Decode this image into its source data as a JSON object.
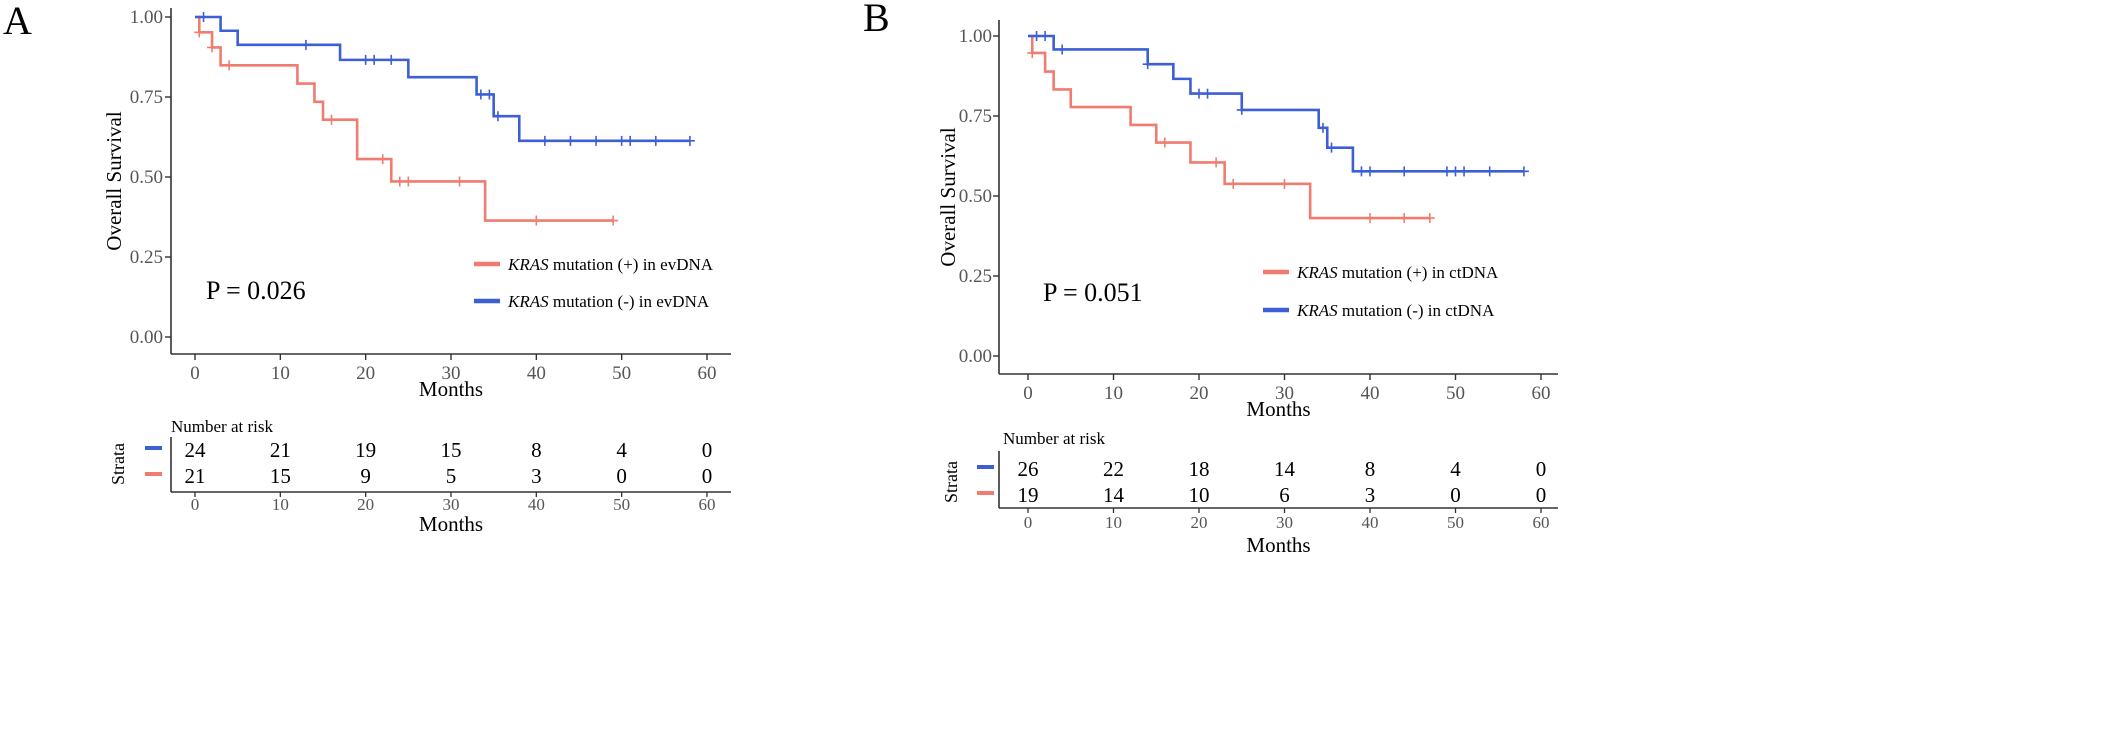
{
  "chart_data": [
    {
      "type": "line",
      "panel_label": "A",
      "xlabel": "Months",
      "ylabel": "Overall Survival",
      "xlim": [
        0,
        60
      ],
      "ylim": [
        0,
        1
      ],
      "x_ticks": [
        0,
        10,
        20,
        30,
        40,
        50,
        60
      ],
      "y_ticks": [
        "0.00",
        "0.25",
        "0.50",
        "0.75",
        "1.00"
      ],
      "grid": false,
      "legend_position": "bottom-right",
      "p_value": "P = 0.026",
      "series": [
        {
          "name_prefix": "KRAS",
          "name_suffix": " mutation (+) in evDNA",
          "color": "#f07c70",
          "steps": [
            [
              0,
              1.0
            ],
            [
              0.5,
              0.952
            ],
            [
              2,
              0.905
            ],
            [
              3,
              0.849
            ],
            [
              12,
              0.792
            ],
            [
              14,
              0.735
            ],
            [
              15,
              0.679
            ],
            [
              19,
              0.556
            ],
            [
              23,
              0.486
            ],
            [
              34,
              0.364
            ],
            [
              49,
              0.364
            ]
          ],
          "censor_times": [
            0.5,
            2,
            4,
            16,
            22,
            24,
            25,
            31,
            40,
            49
          ]
        },
        {
          "name_prefix": "KRAS",
          "name_suffix": " mutation (-) in evDNA",
          "color": "#3d5fd6",
          "steps": [
            [
              0,
              1.0
            ],
            [
              3,
              0.957
            ],
            [
              5,
              0.913
            ],
            [
              17,
              0.866
            ],
            [
              25,
              0.812
            ],
            [
              33,
              0.758
            ],
            [
              35,
              0.69
            ],
            [
              38,
              0.613
            ],
            [
              58,
              0.613
            ]
          ],
          "censor_times": [
            1,
            13,
            20,
            21,
            23,
            33.5,
            34.5,
            35.5,
            41,
            44,
            47,
            50,
            51,
            54,
            58
          ]
        }
      ],
      "risk_table": {
        "title": "Number at risk",
        "ylabel": "Strata",
        "xlabel": "Months",
        "times": [
          0,
          10,
          20,
          30,
          40,
          50,
          60
        ],
        "rows": [
          {
            "color": "#3d5fd6",
            "values": [
              "24",
              "21",
              "19",
              "15",
              "8",
              "4",
              "0"
            ]
          },
          {
            "color": "#f07c70",
            "values": [
              "21",
              "15",
              "9",
              "5",
              "3",
              "0",
              "0"
            ]
          }
        ]
      }
    },
    {
      "type": "line",
      "panel_label": "B",
      "xlabel": "Months",
      "ylabel": "Overall Survival",
      "xlim": [
        0,
        60
      ],
      "ylim": [
        0,
        1
      ],
      "x_ticks": [
        0,
        10,
        20,
        30,
        40,
        50,
        60
      ],
      "y_ticks": [
        "0.00",
        "0.25",
        "0.50",
        "0.75",
        "1.00"
      ],
      "grid": false,
      "legend_position": "bottom-right",
      "p_value": "P = 0.051",
      "series": [
        {
          "name_prefix": "KRAS",
          "name_suffix": " mutation (+) in ctDNA",
          "color": "#f07c70",
          "steps": [
            [
              0,
              1.0
            ],
            [
              0.5,
              0.947
            ],
            [
              2,
              0.889
            ],
            [
              3,
              0.833
            ],
            [
              5,
              0.778
            ],
            [
              12,
              0.722
            ],
            [
              15,
              0.667
            ],
            [
              19,
              0.605
            ],
            [
              23,
              0.538
            ],
            [
              33,
              0.431
            ],
            [
              47,
              0.431
            ]
          ],
          "censor_times": [
            0.5,
            16,
            22,
            24,
            30,
            40,
            44,
            47
          ]
        },
        {
          "name_prefix": "KRAS",
          "name_suffix": " mutation (-) in ctDNA",
          "color": "#3d5fd6",
          "steps": [
            [
              0,
              1.0
            ],
            [
              3,
              0.958
            ],
            [
              14,
              0.912
            ],
            [
              17,
              0.866
            ],
            [
              19,
              0.82
            ],
            [
              25,
              0.769
            ],
            [
              34,
              0.713
            ],
            [
              35,
              0.651
            ],
            [
              38,
              0.577
            ],
            [
              58,
              0.577
            ]
          ],
          "censor_times": [
            1,
            2,
            4,
            14,
            20,
            21,
            25,
            34.5,
            35.5,
            39,
            40,
            44,
            49,
            50,
            51,
            54,
            58
          ]
        }
      ],
      "risk_table": {
        "title": "Number at risk",
        "ylabel": "Strata",
        "xlabel": "Months",
        "times": [
          0,
          10,
          20,
          30,
          40,
          50,
          60
        ],
        "rows": [
          {
            "color": "#3d5fd6",
            "values": [
              "26",
              "22",
              "18",
              "14",
              "8",
              "4",
              "0"
            ]
          },
          {
            "color": "#f07c70",
            "values": [
              "19",
              "14",
              "10",
              "6",
              "3",
              "0",
              "0"
            ]
          }
        ]
      }
    }
  ]
}
